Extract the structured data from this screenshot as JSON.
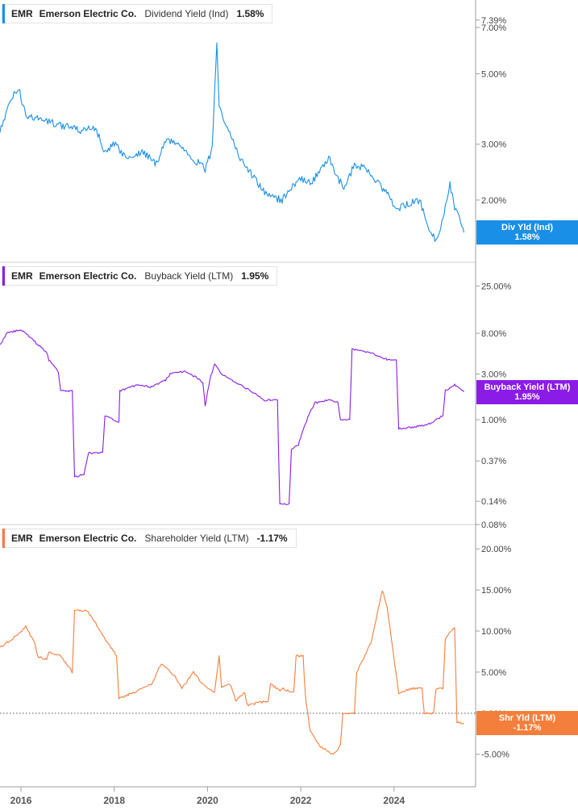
{
  "ticker": "EMR",
  "company": "Emerson Electric Co.",
  "colors": {
    "div": "#1a8fe8",
    "buyback": "#8b1ce8",
    "shareholder": "#f47f3c",
    "axis": "#9e9e9e"
  },
  "x_axis_labels": [
    "2016",
    "2018",
    "2020",
    "2022",
    "2024"
  ],
  "chart_data": [
    {
      "type": "line",
      "name": "Dividend Yield (Ind)",
      "legend": {
        "ticker": "EMR",
        "company": "Emerson Electric Co.",
        "metric": "Dividend Yield (Ind)",
        "value": "1.58%"
      },
      "flag": {
        "label": "Div Yld (Ind)",
        "value": "1.58%"
      },
      "y_scale": "log",
      "ylim": [
        1.35,
        7.6
      ],
      "y_ticks": [
        {
          "v": 7.39,
          "label": "7.39%"
        },
        {
          "v": 7.0,
          "label": "7.00%"
        },
        {
          "v": 5.0,
          "label": "5.00%"
        },
        {
          "v": 3.0,
          "label": "3.00%"
        },
        {
          "v": 2.0,
          "label": "2.00%"
        }
      ],
      "xlim": [
        2015.55,
        2025.75
      ],
      "x_ticks": [
        2016,
        2018,
        2020,
        2022,
        2024
      ],
      "x": [
        2015.55,
        2015.8,
        2015.95,
        2016.1,
        2016.4,
        2016.7,
        2017.0,
        2017.3,
        2017.6,
        2017.8,
        2018.0,
        2018.3,
        2018.6,
        2018.9,
        2019.1,
        2019.4,
        2019.7,
        2019.95,
        2020.1,
        2020.2,
        2020.25,
        2020.35,
        2020.5,
        2020.7,
        2021.0,
        2021.3,
        2021.6,
        2021.8,
        2022.0,
        2022.2,
        2022.4,
        2022.6,
        2022.75,
        2022.95,
        2023.15,
        2023.4,
        2023.6,
        2023.85,
        2024.05,
        2024.3,
        2024.55,
        2024.75,
        2024.9,
        2025.05,
        2025.2,
        2025.3,
        2025.4,
        2025.5
      ],
      "values": [
        3.3,
        4.2,
        4.5,
        3.7,
        3.6,
        3.5,
        3.4,
        3.3,
        3.4,
        2.8,
        3.0,
        2.7,
        2.85,
        2.6,
        3.1,
        3.0,
        2.7,
        2.5,
        2.9,
        6.4,
        4.0,
        3.6,
        3.2,
        2.7,
        2.35,
        2.05,
        2.0,
        2.2,
        2.35,
        2.25,
        2.45,
        2.75,
        2.35,
        2.2,
        2.6,
        2.5,
        2.3,
        2.1,
        1.85,
        1.95,
        2.0,
        1.6,
        1.5,
        1.75,
        2.25,
        1.9,
        1.75,
        1.58
      ]
    },
    {
      "type": "line",
      "name": "Buyback Yield (LTM)",
      "legend": {
        "ticker": "EMR",
        "company": "Emerson Electric Co.",
        "metric": "Buyback Yield (LTM)",
        "value": "1.95%"
      },
      "flag": {
        "label": "Buyback Yield (LTM)",
        "value": "1.95%"
      },
      "y_scale": "log",
      "ylim": [
        0.08,
        30
      ],
      "y_ticks": [
        {
          "v": 25,
          "label": "25.00%"
        },
        {
          "v": 8,
          "label": "8.00%"
        },
        {
          "v": 3,
          "label": "3.00%"
        },
        {
          "v": 1,
          "label": "1.00%"
        },
        {
          "v": 0.37,
          "label": "0.37%"
        },
        {
          "v": 0.14,
          "label": "0.14%"
        },
        {
          "v": 0.08,
          "label": "0.08%"
        }
      ],
      "xlim": [
        2015.55,
        2025.75
      ],
      "x_ticks": [
        2016,
        2018,
        2020,
        2022,
        2024
      ],
      "x": [
        2015.55,
        2015.7,
        2016.0,
        2016.3,
        2016.55,
        2016.6,
        2016.8,
        2016.85,
        2017.1,
        2017.15,
        2017.35,
        2017.45,
        2017.75,
        2017.8,
        2018.1,
        2018.12,
        2018.5,
        2018.8,
        2019.1,
        2019.2,
        2019.5,
        2019.8,
        2019.9,
        2019.95,
        2020.05,
        2020.15,
        2020.3,
        2020.5,
        2020.7,
        2021.0,
        2021.2,
        2021.5,
        2021.55,
        2021.75,
        2021.8,
        2021.95,
        2022.1,
        2022.15,
        2022.3,
        2022.6,
        2022.8,
        2022.85,
        2023.05,
        2023.1,
        2023.5,
        2023.7,
        2023.9,
        2024.05,
        2024.1,
        2024.5,
        2024.75,
        2024.9,
        2025.05,
        2025.1,
        2025.3,
        2025.5
      ],
      "values": [
        6.0,
        8.0,
        8.8,
        6.5,
        5.0,
        4.2,
        3.2,
        2.0,
        2.0,
        0.25,
        0.27,
        0.45,
        0.45,
        1.1,
        0.95,
        2.0,
        2.3,
        2.2,
        2.6,
        3.0,
        3.2,
        2.7,
        2.4,
        1.4,
        2.6,
        3.8,
        3.0,
        2.6,
        2.3,
        1.9,
        1.6,
        1.6,
        0.13,
        0.13,
        0.5,
        0.55,
        0.9,
        1.05,
        1.5,
        1.6,
        1.5,
        1.0,
        1.0,
        5.5,
        5.0,
        4.5,
        4.2,
        4.2,
        0.8,
        0.85,
        0.9,
        1.0,
        1.1,
        2.0,
        2.3,
        1.95
      ]
    },
    {
      "type": "line",
      "name": "Shareholder Yield (LTM)",
      "legend": {
        "ticker": "EMR",
        "company": "Emerson Electric Co.",
        "metric": "Shareholder Yield (LTM)",
        "value": "-1.17%"
      },
      "flag": {
        "label": "Shr Yld (LTM)",
        "value": "-1.17%"
      },
      "y_scale": "linear",
      "ylim": [
        -6.5,
        21
      ],
      "y_ticks": [
        {
          "v": 20,
          "label": "20.00%"
        },
        {
          "v": 15,
          "label": "15.00%"
        },
        {
          "v": 10,
          "label": "10.00%"
        },
        {
          "v": 5,
          "label": "5.00%"
        },
        {
          "v": 0,
          "label": "0.00%"
        },
        {
          "v": -5,
          "label": "-5.00%"
        }
      ],
      "reference_line": 0,
      "xlim": [
        2015.55,
        2025.75
      ],
      "x_ticks": [
        2016,
        2018,
        2020,
        2022,
        2024
      ],
      "x": [
        2015.55,
        2015.8,
        2016.1,
        2016.3,
        2016.35,
        2016.55,
        2016.6,
        2016.85,
        2017.1,
        2017.15,
        2017.4,
        2017.6,
        2017.8,
        2018.05,
        2018.1,
        2018.4,
        2018.8,
        2019.0,
        2019.3,
        2019.45,
        2019.7,
        2019.9,
        2020.15,
        2020.25,
        2020.3,
        2020.5,
        2020.6,
        2020.8,
        2020.85,
        2021.3,
        2021.35,
        2021.55,
        2021.6,
        2021.85,
        2021.9,
        2022.05,
        2022.1,
        2022.2,
        2022.4,
        2022.7,
        2022.85,
        2022.9,
        2023.15,
        2023.2,
        2023.5,
        2023.75,
        2023.85,
        2024.1,
        2024.4,
        2024.6,
        2024.65,
        2024.85,
        2024.9,
        2025.05,
        2025.1,
        2025.3,
        2025.35,
        2025.5
      ],
      "values": [
        8.0,
        9.0,
        10.5,
        8.5,
        7.0,
        6.5,
        7.5,
        7.0,
        5.0,
        12.5,
        12.5,
        11.0,
        9.0,
        7.0,
        1.8,
        2.5,
        3.5,
        6.0,
        4.5,
        3.0,
        5.0,
        3.5,
        2.5,
        7.0,
        3.2,
        3.5,
        1.5,
        2.5,
        1.0,
        1.5,
        3.5,
        2.8,
        3.0,
        2.5,
        7.0,
        7.0,
        2.0,
        -2.0,
        -4.0,
        -5.0,
        -4.0,
        0.0,
        0.0,
        5.0,
        8.5,
        15.0,
        13.0,
        2.5,
        3.0,
        3.0,
        0.0,
        0.0,
        3.0,
        3.0,
        9.0,
        10.5,
        -1.2,
        -1.17
      ]
    }
  ]
}
